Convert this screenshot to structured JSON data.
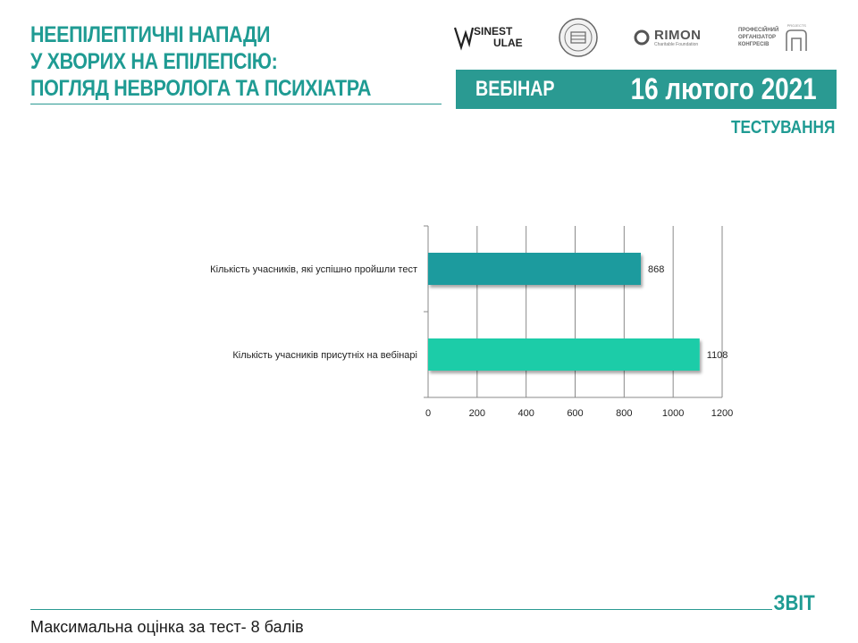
{
  "header": {
    "title_lines": [
      "НЕЕПІЛЕПТИЧНІ НАПАДИ",
      "У ХВОРИХ НА ЕПІЛЕПСІЮ:",
      "ПОГЛЯД НЕВРОЛОГА ТА ПСИХІАТРА"
    ],
    "banner_label": "ВЕБІНАР",
    "banner_date": "16 лютого 2021",
    "section_label": "ТЕСТУВАННЯ",
    "accent_color": "#2a9a92"
  },
  "logos": {
    "sinest": {
      "line1": "SINEST",
      "line2": "ULAE"
    },
    "rimon": {
      "name": "RIMON",
      "subtitle": "Charitable Foundation"
    },
    "organizer": {
      "lines": [
        "ПРОФЕСІЙНИЙ",
        "ОРГАНІЗАТОР",
        "КОНГРЕСІВ"
      ],
      "tag": "PROJECTS"
    }
  },
  "chart_data": {
    "type": "bar",
    "orientation": "horizontal",
    "categories": [
      "Кількість учасників, які успішно пройшли тест",
      "Кількість учасників присутніх на вебінарі"
    ],
    "values": [
      868,
      1108
    ],
    "bar_colors": [
      "#1a9b9e",
      "#1ccca8"
    ],
    "xlim": [
      0,
      1200
    ],
    "xticks": [
      0,
      200,
      400,
      600,
      800,
      1000,
      1200
    ],
    "grid": true,
    "data_labels": [
      "868",
      "1108"
    ]
  },
  "footer": {
    "label": "ЗВІТ",
    "note": "Максимальна оцінка за тест- 8 балів"
  }
}
